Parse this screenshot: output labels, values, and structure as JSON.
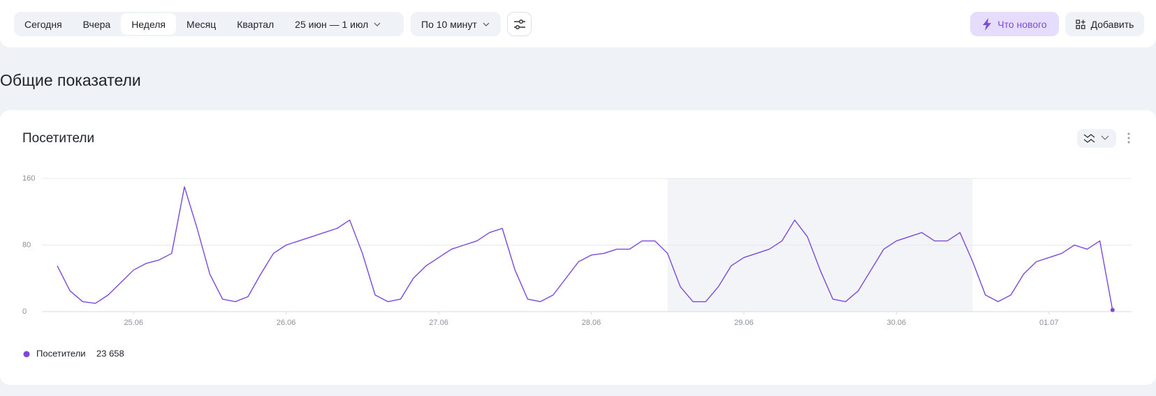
{
  "toolbar": {
    "periods": [
      "Сегодня",
      "Вчера",
      "Неделя",
      "Месяц",
      "Квартал"
    ],
    "active_period": "Неделя",
    "date_range": "25 июн — 1 июл",
    "grouping": "По 10 минут",
    "whats_new": "Что нового",
    "add": "Добавить"
  },
  "heading": "Общие показатели",
  "chart_data": {
    "type": "line",
    "title": "Посетители",
    "x": [
      0,
      2,
      4,
      6,
      8,
      10,
      12,
      14,
      16,
      18,
      20,
      22,
      24,
      26,
      28,
      30,
      32,
      34,
      36,
      38,
      40,
      42,
      44,
      46,
      48,
      50,
      52,
      54,
      56,
      58,
      60,
      62,
      64,
      66,
      68,
      70,
      72,
      74,
      76,
      78,
      80,
      82,
      84,
      86,
      88,
      90,
      92,
      94,
      96,
      98,
      100,
      102,
      104,
      106,
      108,
      110,
      112,
      114,
      116,
      118,
      120,
      122,
      124,
      126,
      128,
      130,
      132,
      134,
      136,
      138,
      140,
      142,
      144,
      146,
      148,
      150,
      152,
      154,
      156,
      158,
      160,
      162,
      164,
      166
    ],
    "series": [
      {
        "name": "Посетители",
        "color": "#7b48d9",
        "total_label": "23 658",
        "values": [
          55,
          25,
          12,
          10,
          20,
          35,
          50,
          58,
          62,
          70,
          150,
          100,
          45,
          15,
          12,
          18,
          45,
          70,
          80,
          85,
          90,
          95,
          100,
          110,
          70,
          20,
          12,
          15,
          40,
          55,
          65,
          75,
          80,
          85,
          95,
          100,
          50,
          15,
          12,
          20,
          40,
          60,
          68,
          70,
          75,
          75,
          85,
          85,
          70,
          30,
          12,
          12,
          30,
          55,
          65,
          70,
          75,
          85,
          110,
          90,
          50,
          15,
          12,
          25,
          50,
          75,
          85,
          90,
          95,
          85,
          85,
          95,
          60,
          20,
          12,
          20,
          45,
          60,
          65,
          70,
          80,
          75,
          85,
          2
        ]
      }
    ],
    "xlim": [
      0,
      168
    ],
    "xticks": [
      {
        "value": 12,
        "label": "25.06"
      },
      {
        "value": 36,
        "label": "26.06"
      },
      {
        "value": 60,
        "label": "27.06"
      },
      {
        "value": 84,
        "label": "28.06"
      },
      {
        "value": 108,
        "label": "29.06"
      },
      {
        "value": 132,
        "label": "30.06"
      },
      {
        "value": 156,
        "label": "01.07"
      }
    ],
    "ylim": [
      0,
      160
    ],
    "yticks": [
      0,
      80,
      160
    ],
    "grid": true,
    "highlight": [
      96,
      144
    ],
    "highlight_color": "#f3f4f8"
  }
}
